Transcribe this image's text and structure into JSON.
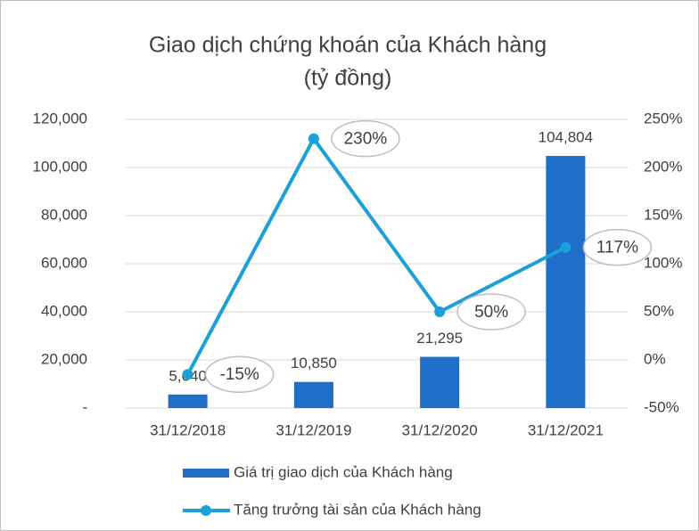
{
  "chart_data": {
    "type": "bar",
    "title": "Giao dịch chứng khoán của Khách hàng",
    "subtitle": "(tỷ đồng)",
    "categories": [
      "31/12/2018",
      "31/12/2019",
      "31/12/2020",
      "31/12/2021"
    ],
    "series": [
      {
        "name": "Giá trị giao dịch của Khách hàng",
        "type": "bar",
        "color": "#1f6fc9",
        "values": [
          5640,
          10850,
          21295,
          104804
        ],
        "value_labels": [
          "5,640",
          "10,850",
          "21,295",
          "104,804"
        ]
      },
      {
        "name": "Tăng trưởng tài sản của Khách hàng",
        "type": "line",
        "axis": "y2",
        "color": "#1ca0d8",
        "values": [
          -15,
          230,
          50,
          117
        ],
        "value_labels": [
          "-15%",
          "230%",
          "50%",
          "117%"
        ]
      }
    ],
    "ylim": [
      0,
      120000
    ],
    "yticks": [
      {
        "value": 0,
        "label": "-"
      },
      {
        "value": 20000,
        "label": "20,000"
      },
      {
        "value": 40000,
        "label": "40,000"
      },
      {
        "value": 60000,
        "label": "60,000"
      },
      {
        "value": 80000,
        "label": "80,000"
      },
      {
        "value": 100000,
        "label": "100,000"
      },
      {
        "value": 120000,
        "label": "120,000"
      }
    ],
    "y2lim": [
      -50,
      250
    ],
    "y2ticks": [
      {
        "value": -50,
        "label": "-50%"
      },
      {
        "value": 0,
        "label": "0%"
      },
      {
        "value": 50,
        "label": "50%"
      },
      {
        "value": 100,
        "label": "100%"
      },
      {
        "value": 150,
        "label": "150%"
      },
      {
        "value": 200,
        "label": "200%"
      },
      {
        "value": 250,
        "label": "250%"
      }
    ],
    "grid": true,
    "legend": "bottom"
  }
}
